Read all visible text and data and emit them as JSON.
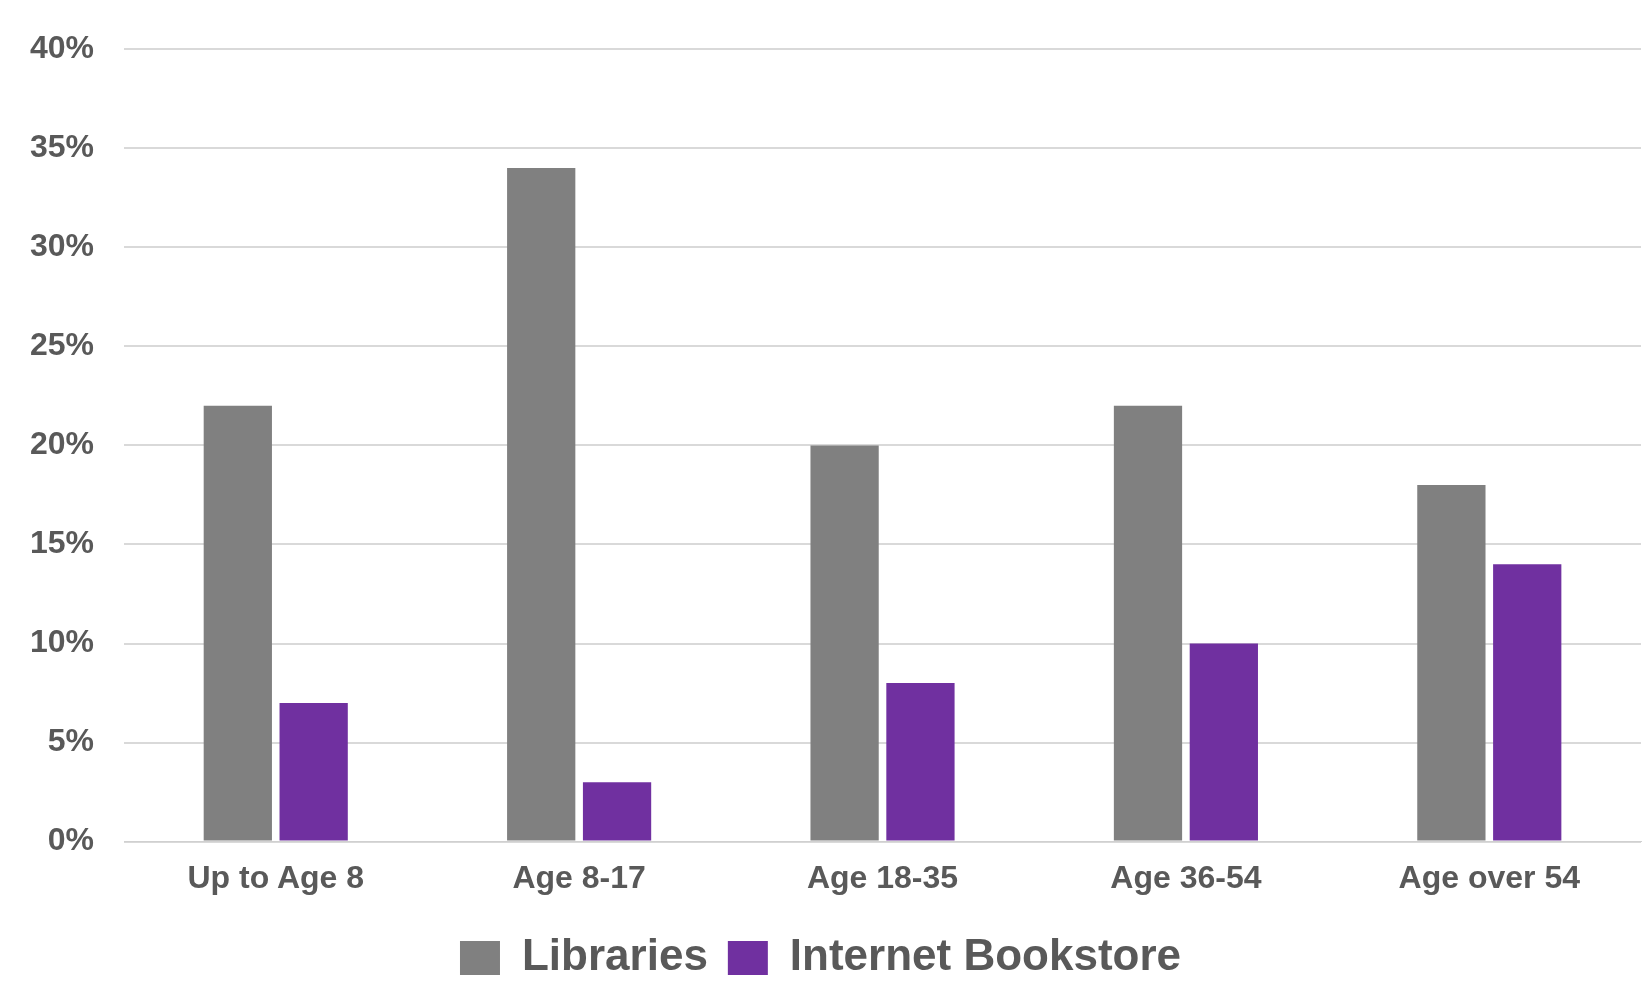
{
  "chart_data": {
    "type": "bar",
    "categories": [
      "Up to Age 8",
      "Age 8-17",
      "Age 18-35",
      "Age 36-54",
      "Age over 54"
    ],
    "series": [
      {
        "name": "Libraries",
        "color": "#808080",
        "values": [
          22,
          34,
          20,
          22,
          18
        ]
      },
      {
        "name": "Internet Bookstore",
        "color": "#7030a0",
        "values": [
          7,
          3,
          8,
          10,
          14
        ]
      }
    ],
    "ylim": [
      0,
      40
    ],
    "yticks": [
      {
        "value": 0,
        "label": "0%"
      },
      {
        "value": 5,
        "label": "5%"
      },
      {
        "value": 10,
        "label": "10%"
      },
      {
        "value": 15,
        "label": "15%"
      },
      {
        "value": 20,
        "label": "20%"
      },
      {
        "value": 25,
        "label": "25%"
      },
      {
        "value": 30,
        "label": "30%"
      },
      {
        "value": 35,
        "label": "35%"
      },
      {
        "value": 40,
        "label": "40%"
      }
    ],
    "grid": "y",
    "legend": "bottom"
  }
}
